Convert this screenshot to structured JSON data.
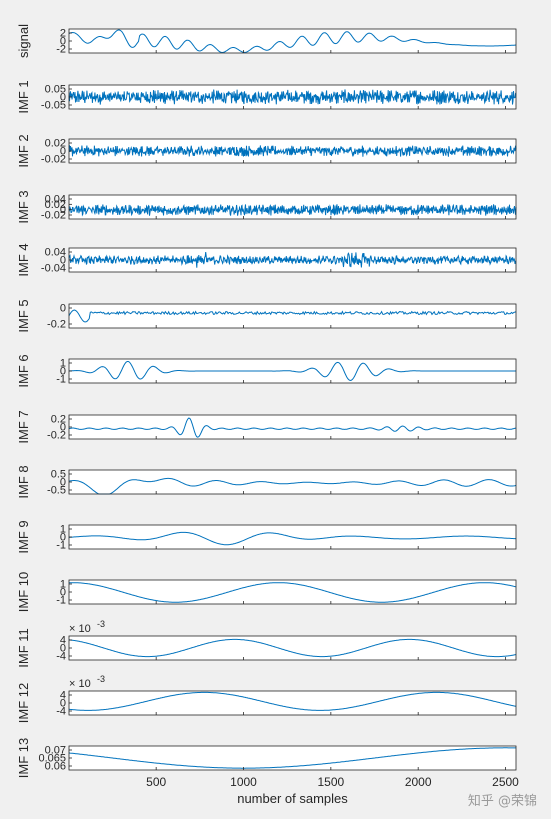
{
  "figure": {
    "xlabel": "number of samples",
    "xticks": [
      500,
      1000,
      1500,
      2000,
      2500
    ],
    "xlim": [
      1,
      2560
    ],
    "line_color": "#0072BD",
    "axes_bg": "#ffffff",
    "figure_bg": "#f0f0f0",
    "watermark": "知乎 @荣锦"
  },
  "chart_data": [
    {
      "type": "line",
      "ylabel": "signal",
      "yticks": [
        "2",
        "0",
        "-2"
      ],
      "ylim": [
        -3.5,
        3
      ],
      "pattern": {
        "kind": "signal"
      }
    },
    {
      "type": "line",
      "ylabel": "IMF 1",
      "yticks": [
        "0.05",
        "0",
        "-0.05"
      ],
      "ylim": [
        -0.05,
        0.05
      ],
      "pattern": {
        "kind": "noise",
        "amp": 0.02,
        "freq": 0.6
      }
    },
    {
      "type": "line",
      "ylabel": "IMF 2",
      "yticks": [
        "0.02",
        "0",
        "-0.02"
      ],
      "ylim": [
        -0.04,
        0.04
      ],
      "pattern": {
        "kind": "noise",
        "amp": 0.012,
        "freq": 0.35
      }
    },
    {
      "type": "line",
      "ylabel": "IMF 3",
      "yticks": [
        "0.04",
        "0.02",
        "0",
        "-0.02"
      ],
      "ylim": [
        -0.03,
        0.05
      ],
      "pattern": {
        "kind": "noise",
        "amp": 0.012,
        "freq": 0.25
      }
    },
    {
      "type": "line",
      "ylabel": "IMF 4",
      "yticks": [
        "0.04",
        "0",
        "-0.04"
      ],
      "ylim": [
        -0.05,
        0.05
      ],
      "pattern": {
        "kind": "noise",
        "amp": 0.012,
        "freq": 0.12
      }
    },
    {
      "type": "line",
      "ylabel": "IMF 5",
      "yticks": [
        "0",
        "-0.2"
      ],
      "ylim": [
        -0.25,
        0.15
      ],
      "pattern": {
        "kind": "imf5"
      }
    },
    {
      "type": "line",
      "ylabel": "IMF 6",
      "yticks": [
        "1",
        "0",
        "-1"
      ],
      "ylim": [
        -1.5,
        1.5
      ],
      "pattern": {
        "kind": "imf6"
      }
    },
    {
      "type": "line",
      "ylabel": "IMF 7",
      "yticks": [
        "0.2",
        "0",
        "-0.2"
      ],
      "ylim": [
        -0.3,
        0.4
      ],
      "pattern": {
        "kind": "imf7"
      }
    },
    {
      "type": "line",
      "ylabel": "IMF 8",
      "yticks": [
        "0.5",
        "0",
        "-0.5"
      ],
      "ylim": [
        -0.6,
        0.7
      ],
      "pattern": {
        "kind": "imf8"
      }
    },
    {
      "type": "line",
      "ylabel": "IMF 9",
      "yticks": [
        "1",
        "0",
        "-1"
      ],
      "ylim": [
        -1.2,
        1.3
      ],
      "pattern": {
        "kind": "imf9"
      }
    },
    {
      "type": "line",
      "ylabel": "IMF 10",
      "yticks": [
        "1",
        "0",
        "-1"
      ],
      "ylim": [
        -1.3,
        1.4
      ],
      "pattern": {
        "kind": "imf10"
      }
    },
    {
      "type": "line",
      "ylabel": "IMF 11",
      "yticks": [
        "4",
        "0",
        "-4"
      ],
      "ylim": [
        -6,
        6
      ],
      "exponent": "-3",
      "pattern": {
        "kind": "imf11"
      }
    },
    {
      "type": "line",
      "ylabel": "IMF 12",
      "yticks": [
        "4",
        "0",
        "-4"
      ],
      "ylim": [
        -6,
        6
      ],
      "exponent": "-3",
      "pattern": {
        "kind": "imf12"
      }
    },
    {
      "type": "line",
      "ylabel": "IMF 13",
      "yticks": [
        "0.07",
        "0.065",
        "0.06"
      ],
      "ylim": [
        0.058,
        0.071
      ],
      "pattern": {
        "kind": "imf13"
      }
    }
  ]
}
